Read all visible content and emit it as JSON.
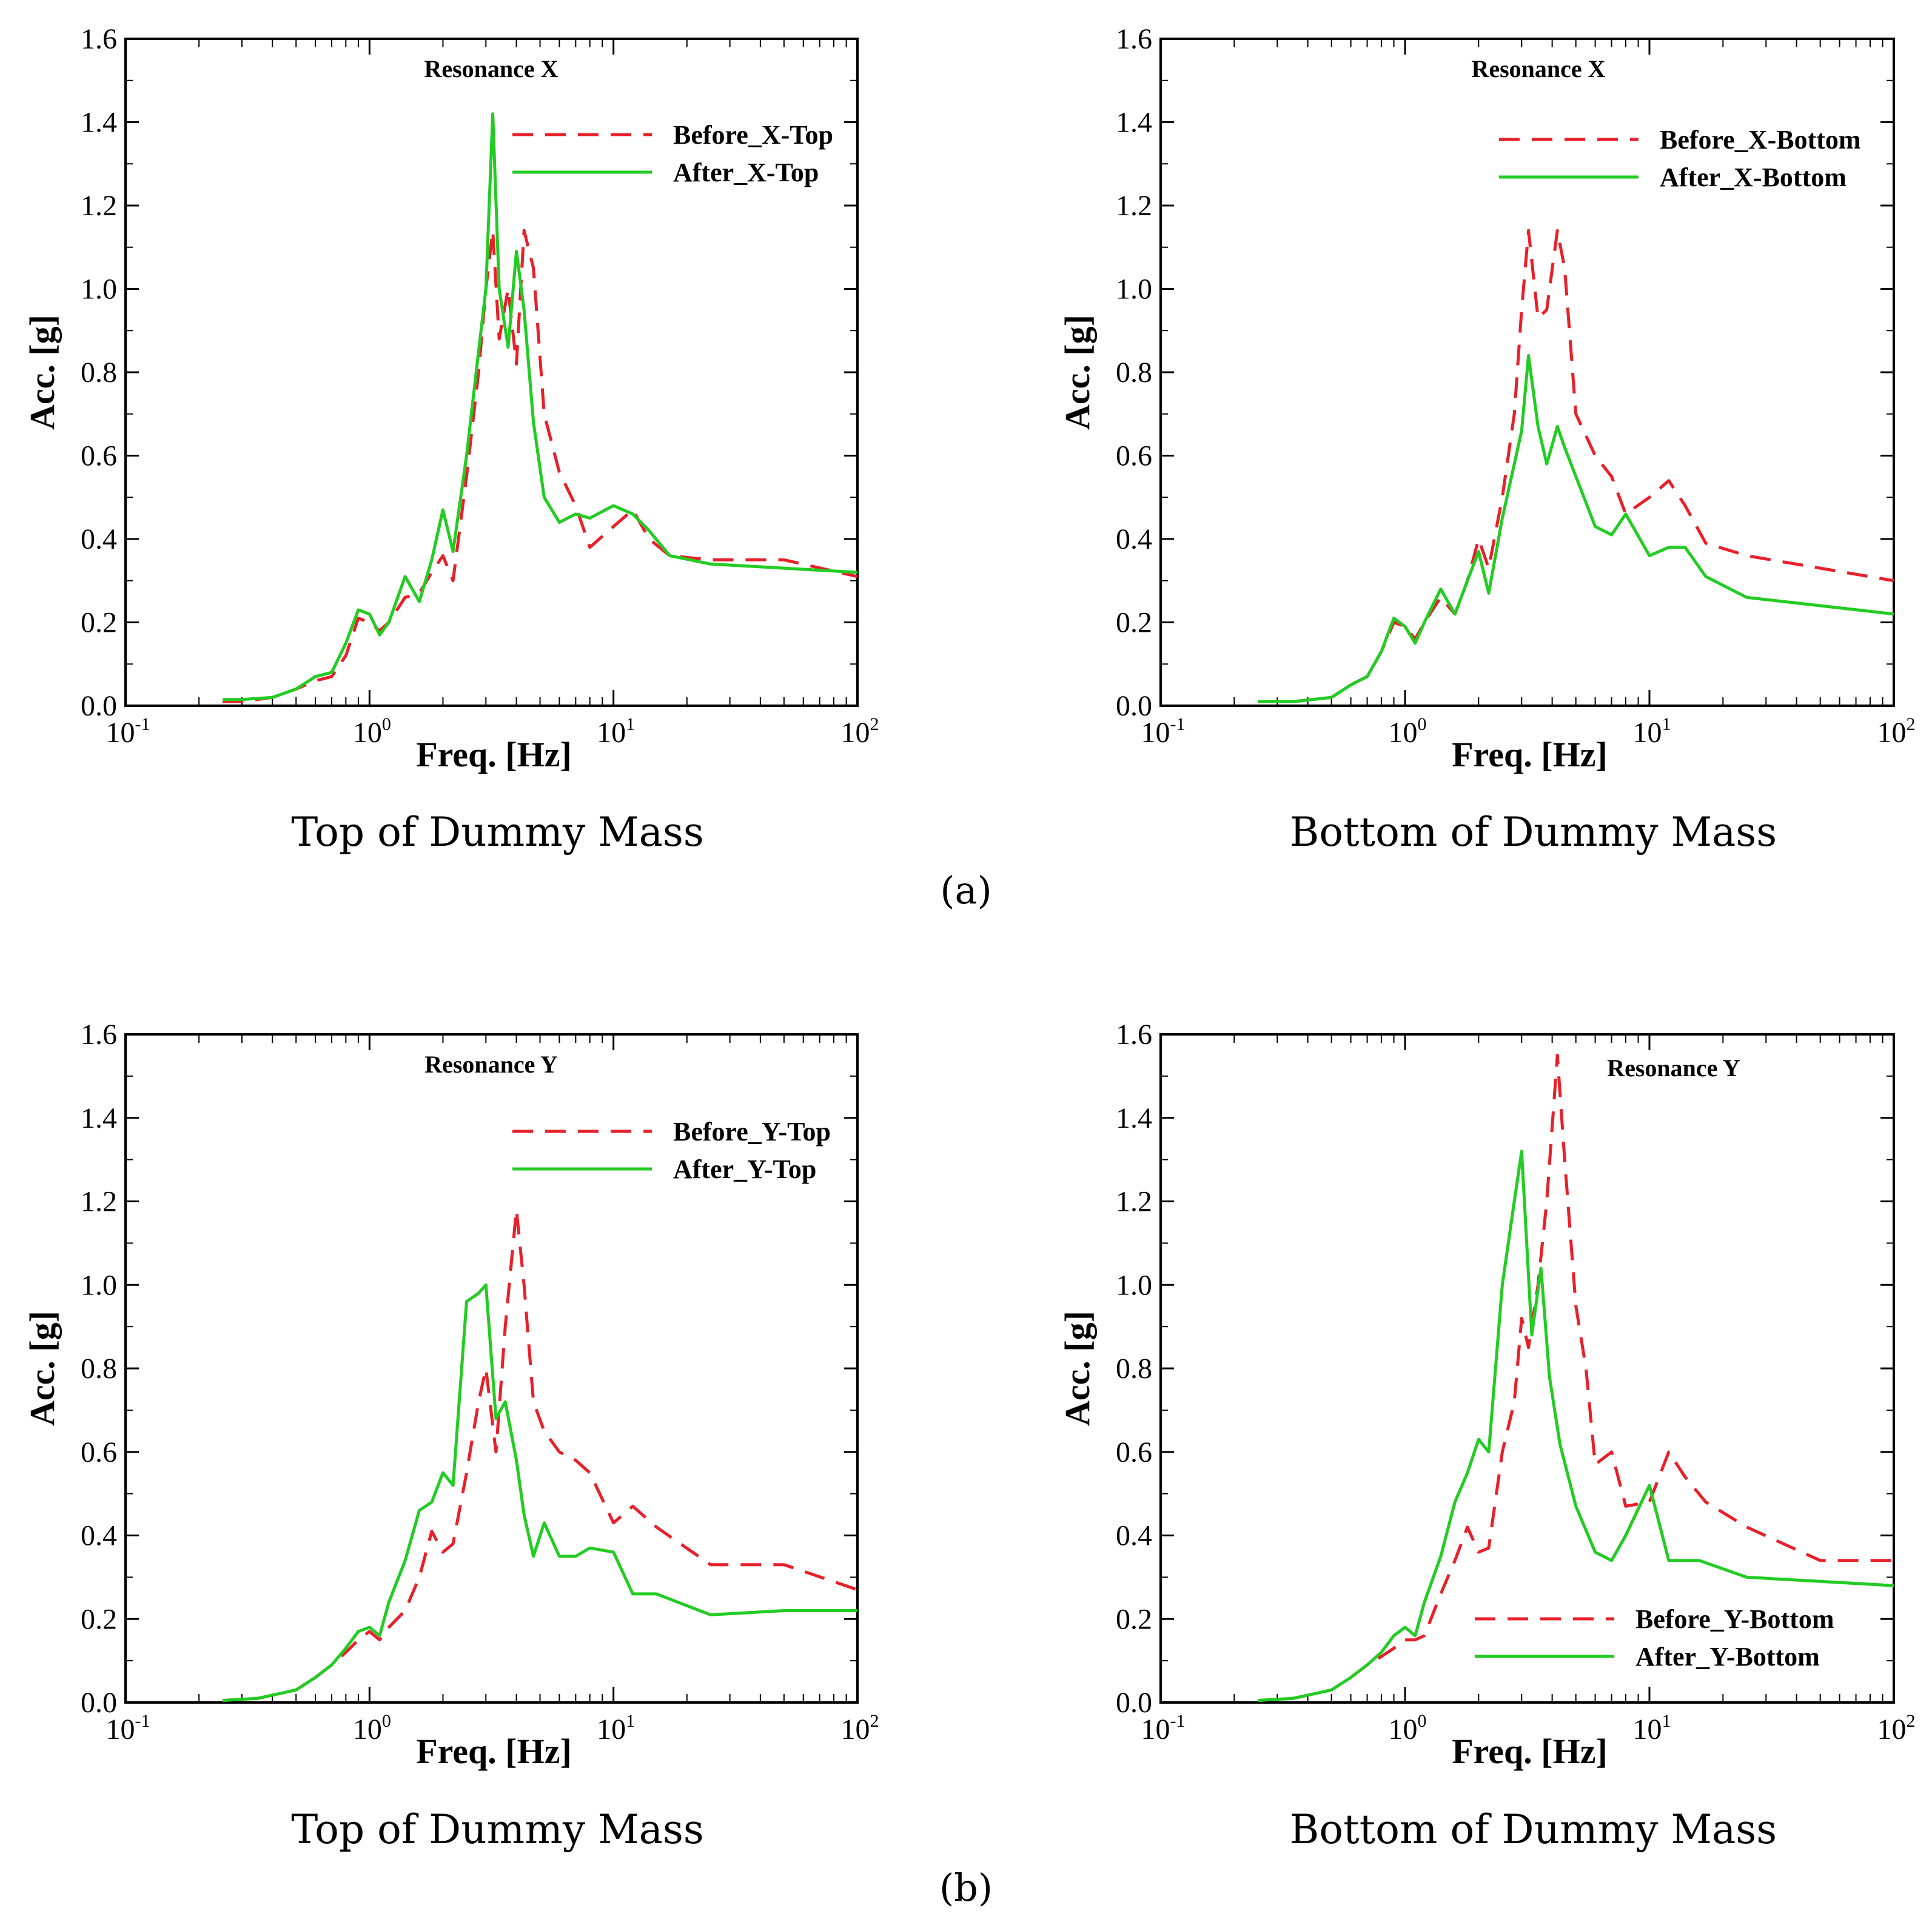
{
  "panel_labels": [
    "(a)",
    "(b)"
  ],
  "chart_data": [
    {
      "type": "line",
      "title": "Resonance X",
      "caption": "Top of Dummy Mass",
      "xlabel": "Freq. [Hz]",
      "ylabel": "Acc. [g]",
      "xscale": "log",
      "xlim": [
        0.1,
        100
      ],
      "ylim": [
        0,
        1.6
      ],
      "yticks": [
        "0.0",
        "0.2",
        "0.4",
        "0.6",
        "0.8",
        "1.0",
        "1.2",
        "1.4",
        "1.6"
      ],
      "xticks": [
        {
          "base": "10",
          "exp": "-1"
        },
        {
          "base": "10",
          "exp": "0"
        },
        {
          "base": "10",
          "exp": "1"
        },
        {
          "base": "10",
          "exp": "2"
        }
      ],
      "legend_position": "top-right",
      "series": [
        {
          "name": "Before_X-Top",
          "color": "#e8202a",
          "dash": "dashed",
          "x": [
            0.25,
            0.3,
            0.4,
            0.5,
            0.6,
            0.7,
            0.8,
            0.9,
            1.0,
            1.1,
            1.2,
            1.4,
            1.6,
            1.8,
            2.0,
            2.2,
            2.5,
            2.8,
            3.0,
            3.2,
            3.4,
            3.7,
            4.0,
            4.3,
            4.7,
            5.2,
            6.0,
            7.0,
            8.0,
            10.0,
            12.0,
            14.0,
            17.0,
            25.0,
            50.0,
            100.0
          ],
          "y": [
            0.01,
            0.01,
            0.02,
            0.04,
            0.06,
            0.07,
            0.12,
            0.21,
            0.2,
            0.18,
            0.2,
            0.26,
            0.27,
            0.32,
            0.36,
            0.3,
            0.55,
            0.8,
            1.0,
            1.14,
            0.88,
            1.0,
            0.82,
            1.14,
            1.05,
            0.7,
            0.56,
            0.48,
            0.38,
            0.43,
            0.47,
            0.4,
            0.36,
            0.35,
            0.35,
            0.31
          ]
        },
        {
          "name": "After_X-Top",
          "color": "#22cc22",
          "dash": "solid",
          "x": [
            0.25,
            0.3,
            0.4,
            0.5,
            0.6,
            0.7,
            0.8,
            0.9,
            1.0,
            1.1,
            1.2,
            1.4,
            1.6,
            1.8,
            2.0,
            2.2,
            2.5,
            2.8,
            3.0,
            3.2,
            3.4,
            3.7,
            4.0,
            4.3,
            4.7,
            5.2,
            6.0,
            7.0,
            8.0,
            10.0,
            12.0,
            14.0,
            17.0,
            25.0,
            50.0,
            100.0
          ],
          "y": [
            0.015,
            0.015,
            0.02,
            0.04,
            0.07,
            0.08,
            0.15,
            0.23,
            0.22,
            0.17,
            0.2,
            0.31,
            0.25,
            0.35,
            0.47,
            0.37,
            0.6,
            0.85,
            1.0,
            1.42,
            1.0,
            0.86,
            1.09,
            0.95,
            0.68,
            0.5,
            0.44,
            0.46,
            0.45,
            0.48,
            0.46,
            0.42,
            0.36,
            0.34,
            0.33,
            0.32
          ]
        }
      ]
    },
    {
      "type": "line",
      "title": "Resonance X",
      "caption": "Bottom of Dummy Mass",
      "xlabel": "Freq. [Hz]",
      "ylabel": "Acc. [g]",
      "xscale": "log",
      "xlim": [
        0.1,
        100
      ],
      "ylim": [
        0,
        1.6
      ],
      "yticks": [
        "0.0",
        "0.2",
        "0.4",
        "0.6",
        "0.8",
        "1.0",
        "1.2",
        "1.4",
        "1.6"
      ],
      "xticks": [
        {
          "base": "10",
          "exp": "-1"
        },
        {
          "base": "10",
          "exp": "0"
        },
        {
          "base": "10",
          "exp": "1"
        },
        {
          "base": "10",
          "exp": "2"
        }
      ],
      "legend_position": "top-right",
      "series": [
        {
          "name": "Before_X-Bottom",
          "color": "#e8202a",
          "dash": "dashed",
          "x": [
            0.25,
            0.35,
            0.5,
            0.6,
            0.7,
            0.8,
            0.9,
            1.0,
            1.1,
            1.2,
            1.4,
            1.6,
            1.8,
            2.0,
            2.2,
            2.5,
            2.8,
            3.0,
            3.2,
            3.5,
            3.8,
            4.2,
            4.5,
            5.0,
            6.0,
            7.0,
            8.0,
            10.0,
            12.0,
            14.0,
            17.0,
            25.0,
            50.0,
            100.0
          ],
          "y": [
            0.01,
            0.01,
            0.02,
            0.05,
            0.07,
            0.13,
            0.2,
            0.19,
            0.16,
            0.2,
            0.26,
            0.22,
            0.3,
            0.4,
            0.33,
            0.5,
            0.7,
            0.95,
            1.14,
            0.93,
            0.95,
            1.14,
            1.05,
            0.7,
            0.6,
            0.55,
            0.46,
            0.5,
            0.54,
            0.48,
            0.39,
            0.36,
            0.33,
            0.3
          ]
        },
        {
          "name": "After_X-Bottom",
          "color": "#22cc22",
          "dash": "solid",
          "x": [
            0.25,
            0.35,
            0.5,
            0.6,
            0.7,
            0.8,
            0.9,
            1.0,
            1.1,
            1.2,
            1.4,
            1.6,
            1.8,
            2.0,
            2.2,
            2.5,
            2.8,
            3.0,
            3.2,
            3.5,
            3.8,
            4.2,
            4.5,
            5.0,
            6.0,
            7.0,
            8.0,
            10.0,
            12.0,
            14.0,
            17.0,
            25.0,
            50.0,
            100.0
          ],
          "y": [
            0.01,
            0.01,
            0.02,
            0.05,
            0.07,
            0.13,
            0.21,
            0.19,
            0.15,
            0.2,
            0.28,
            0.22,
            0.3,
            0.37,
            0.27,
            0.45,
            0.58,
            0.66,
            0.84,
            0.67,
            0.58,
            0.67,
            0.62,
            0.55,
            0.43,
            0.41,
            0.46,
            0.36,
            0.38,
            0.38,
            0.31,
            0.26,
            0.24,
            0.22
          ]
        }
      ]
    },
    {
      "type": "line",
      "title": "Resonance Y",
      "caption": "Top of Dummy Mass",
      "xlabel": "Freq. [Hz]",
      "ylabel": "Acc. [g]",
      "xscale": "log",
      "xlim": [
        0.1,
        100
      ],
      "ylim": [
        0,
        1.6
      ],
      "yticks": [
        "0.0",
        "0.2",
        "0.4",
        "0.6",
        "0.8",
        "1.0",
        "1.2",
        "1.4",
        "1.6"
      ],
      "xticks": [
        {
          "base": "10",
          "exp": "-1"
        },
        {
          "base": "10",
          "exp": "0"
        },
        {
          "base": "10",
          "exp": "1"
        },
        {
          "base": "10",
          "exp": "2"
        }
      ],
      "legend_position": "top-right",
      "series": [
        {
          "name": "Before_Y-Top",
          "color": "#e8202a",
          "dash": "dashed",
          "x": [
            0.25,
            0.35,
            0.5,
            0.6,
            0.7,
            0.8,
            0.9,
            1.0,
            1.1,
            1.2,
            1.4,
            1.6,
            1.8,
            2.0,
            2.2,
            2.5,
            2.8,
            3.0,
            3.3,
            3.6,
            4.0,
            4.3,
            4.7,
            5.2,
            6.0,
            7.0,
            8.0,
            10.0,
            12.0,
            15.0,
            25.0,
            50.0,
            100.0
          ],
          "y": [
            0.005,
            0.01,
            0.03,
            0.06,
            0.09,
            0.12,
            0.15,
            0.17,
            0.15,
            0.18,
            0.22,
            0.3,
            0.41,
            0.36,
            0.38,
            0.55,
            0.72,
            0.8,
            0.6,
            0.9,
            1.18,
            1.0,
            0.72,
            0.65,
            0.6,
            0.58,
            0.55,
            0.43,
            0.47,
            0.42,
            0.33,
            0.33,
            0.27
          ]
        },
        {
          "name": "After_Y-Top",
          "color": "#22cc22",
          "dash": "solid",
          "x": [
            0.25,
            0.35,
            0.5,
            0.6,
            0.7,
            0.8,
            0.9,
            1.0,
            1.1,
            1.2,
            1.4,
            1.6,
            1.8,
            2.0,
            2.2,
            2.5,
            2.8,
            3.0,
            3.3,
            3.6,
            4.0,
            4.3,
            4.7,
            5.2,
            6.0,
            7.0,
            8.0,
            10.0,
            12.0,
            15.0,
            25.0,
            50.0,
            100.0
          ],
          "y": [
            0.005,
            0.01,
            0.03,
            0.06,
            0.09,
            0.13,
            0.17,
            0.18,
            0.16,
            0.24,
            0.34,
            0.46,
            0.48,
            0.55,
            0.52,
            0.96,
            0.98,
            1.0,
            0.68,
            0.72,
            0.58,
            0.45,
            0.35,
            0.43,
            0.35,
            0.35,
            0.37,
            0.36,
            0.26,
            0.26,
            0.21,
            0.22,
            0.22
          ]
        }
      ]
    },
    {
      "type": "line",
      "title": "Resonance Y",
      "caption": "Bottom of Dummy Mass",
      "xlabel": "Freq. [Hz]",
      "ylabel": "Acc. [g]",
      "xscale": "log",
      "xlim": [
        0.1,
        100
      ],
      "ylim": [
        0,
        1.6
      ],
      "yticks": [
        "0.0",
        "0.2",
        "0.4",
        "0.6",
        "0.8",
        "1.0",
        "1.2",
        "1.4",
        "1.6"
      ],
      "xticks": [
        {
          "base": "10",
          "exp": "-1"
        },
        {
          "base": "10",
          "exp": "0"
        },
        {
          "base": "10",
          "exp": "1"
        },
        {
          "base": "10",
          "exp": "2"
        }
      ],
      "legend_position": "bottom-right",
      "series": [
        {
          "name": "Before_Y-Bottom",
          "color": "#e8202a",
          "dash": "dashed",
          "x": [
            0.25,
            0.35,
            0.5,
            0.6,
            0.7,
            0.8,
            0.9,
            1.0,
            1.1,
            1.2,
            1.4,
            1.6,
            1.8,
            2.0,
            2.2,
            2.5,
            2.8,
            3.0,
            3.2,
            3.5,
            3.8,
            4.2,
            4.5,
            5.0,
            5.5,
            6.0,
            7.0,
            8.0,
            10.0,
            12.0,
            14.0,
            17.0,
            25.0,
            50.0,
            100.0
          ],
          "y": [
            0.005,
            0.01,
            0.03,
            0.06,
            0.09,
            0.11,
            0.13,
            0.15,
            0.15,
            0.16,
            0.26,
            0.34,
            0.42,
            0.36,
            0.37,
            0.6,
            0.72,
            0.92,
            0.85,
            1.0,
            1.2,
            1.55,
            1.3,
            0.95,
            0.8,
            0.57,
            0.6,
            0.47,
            0.48,
            0.6,
            0.54,
            0.48,
            0.42,
            0.34,
            0.34
          ]
        },
        {
          "name": "After_Y-Bottom",
          "color": "#22cc22",
          "dash": "solid",
          "x": [
            0.25,
            0.35,
            0.5,
            0.6,
            0.7,
            0.8,
            0.9,
            1.0,
            1.1,
            1.2,
            1.4,
            1.6,
            1.8,
            2.0,
            2.2,
            2.5,
            2.8,
            3.0,
            3.3,
            3.6,
            3.9,
            4.3,
            5.0,
            6.0,
            7.0,
            8.0,
            10.0,
            12.0,
            16.0,
            25.0,
            50.0,
            100.0
          ],
          "y": [
            0.005,
            0.01,
            0.03,
            0.06,
            0.09,
            0.12,
            0.16,
            0.18,
            0.16,
            0.24,
            0.35,
            0.48,
            0.55,
            0.63,
            0.6,
            1.0,
            1.2,
            1.32,
            0.88,
            1.04,
            0.78,
            0.62,
            0.47,
            0.36,
            0.34,
            0.4,
            0.52,
            0.34,
            0.34,
            0.3,
            0.29,
            0.28
          ]
        }
      ]
    }
  ]
}
